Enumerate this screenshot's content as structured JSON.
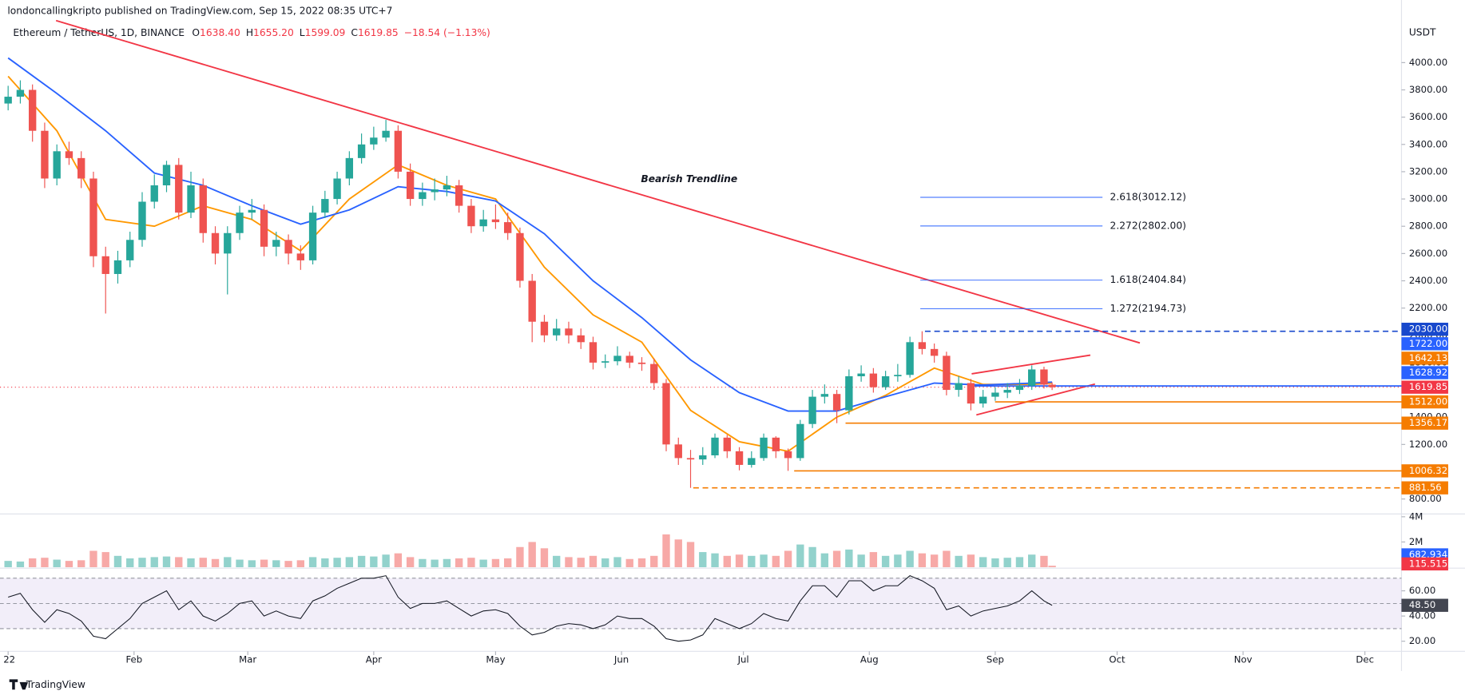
{
  "header": {
    "publisher": "londoncallingkripto published on TradingView.com, Sep 15, 2022 08:35 UTC+7",
    "symbol": "Ethereum / TetherUS, 1D, BINANCE",
    "ohlc": [
      {
        "key": "O",
        "text": "1638.40"
      },
      {
        "key": "H",
        "text": "1655.20"
      },
      {
        "key": "L",
        "text": "1599.09"
      },
      {
        "key": "C",
        "text": "1619.85"
      }
    ],
    "change": "−18.54 (−1.13%)",
    "currency": "USDT",
    "footer": "TradingView"
  },
  "chart_data": {
    "type": "candlestick",
    "annotation": "Bearish Trendline",
    "x": [
      0,
      3,
      6,
      9,
      12,
      15,
      18,
      21,
      24,
      27,
      30,
      33,
      36,
      39,
      42,
      45,
      48,
      51,
      54,
      57,
      60,
      63,
      66,
      69,
      72,
      75,
      78,
      81,
      84,
      87,
      90,
      93,
      96,
      99,
      102,
      105,
      108,
      111,
      114,
      117,
      120,
      123,
      126,
      129,
      132,
      135,
      138,
      141,
      144,
      147,
      150,
      153,
      156,
      159,
      162,
      165,
      168,
      171,
      174,
      177,
      180,
      183,
      186,
      189,
      192,
      195,
      198,
      201,
      204,
      207,
      210,
      213,
      216,
      219,
      222,
      225,
      228,
      231,
      234,
      237,
      240,
      243,
      246,
      249,
      252,
      255,
      257
    ],
    "open": [
      3700,
      3750,
      3800,
      3500,
      3150,
      3350,
      3300,
      3150,
      2580,
      2450,
      2550,
      2700,
      2980,
      3100,
      3250,
      2900,
      3100,
      2750,
      2600,
      2750,
      2900,
      2920,
      2650,
      2700,
      2600,
      2550,
      2900,
      3000,
      3150,
      3300,
      3400,
      3450,
      3500,
      3200,
      3000,
      3050,
      3070,
      3100,
      2950,
      2800,
      2850,
      2830,
      2750,
      2400,
      2100,
      2000,
      2050,
      2000,
      1950,
      1800,
      1810,
      1850,
      1800,
      1790,
      1650,
      1200,
      1100,
      1090,
      1120,
      1250,
      1150,
      1050,
      1100,
      1250,
      1150,
      1100,
      1350,
      1550,
      1570,
      1450,
      1700,
      1720,
      1620,
      1700,
      1710,
      1950,
      1900,
      1850,
      1600,
      1650,
      1500,
      1550,
      1580,
      1600,
      1630,
      1750,
      1638.4
    ],
    "high": [
      3830,
      3870,
      3840,
      3560,
      3400,
      3420,
      3350,
      3200,
      2650,
      2620,
      2760,
      3050,
      3180,
      3280,
      3300,
      3200,
      3150,
      2800,
      2800,
      2950,
      3000,
      2960,
      2760,
      2740,
      2660,
      2950,
      3060,
      3200,
      3350,
      3480,
      3530,
      3580,
      3540,
      3260,
      3120,
      3150,
      3170,
      3140,
      3000,
      2920,
      2960,
      2900,
      2790,
      2450,
      2150,
      2120,
      2100,
      2050,
      1990,
      1860,
      1920,
      1880,
      1840,
      1830,
      1680,
      1250,
      1160,
      1180,
      1280,
      1270,
      1180,
      1150,
      1280,
      1260,
      1170,
      1380,
      1600,
      1640,
      1600,
      1750,
      1780,
      1760,
      1740,
      1790,
      1990,
      2030,
      1940,
      1880,
      1700,
      1680,
      1600,
      1620,
      1650,
      1680,
      1780,
      1770,
      1655.2
    ],
    "low": [
      3650,
      3700,
      3420,
      3080,
      3100,
      3250,
      3080,
      2500,
      2160,
      2380,
      2500,
      2650,
      2930,
      3050,
      2850,
      2860,
      2680,
      2520,
      2300,
      2700,
      2850,
      2580,
      2580,
      2520,
      2480,
      2520,
      2860,
      2960,
      3100,
      3260,
      3360,
      3420,
      3150,
      2950,
      2950,
      2990,
      3020,
      2900,
      2750,
      2760,
      2780,
      2700,
      2350,
      1950,
      1950,
      1960,
      1940,
      1900,
      1750,
      1760,
      1780,
      1760,
      1740,
      1600,
      1150,
      1050,
      881.56,
      1050,
      1100,
      1100,
      1010,
      1030,
      1080,
      1100,
      1006.32,
      1080,
      1320,
      1500,
      1356.17,
      1420,
      1660,
      1580,
      1600,
      1660,
      1690,
      1860,
      1800,
      1560,
      1550,
      1450,
      1470,
      1520,
      1540,
      1570,
      1600,
      1610,
      1599.09
    ],
    "close": [
      3750,
      3800,
      3500,
      3150,
      3350,
      3300,
      3150,
      2580,
      2450,
      2550,
      2700,
      2980,
      3100,
      3250,
      2900,
      3100,
      2750,
      2600,
      2750,
      2900,
      2920,
      2650,
      2700,
      2600,
      2550,
      2900,
      3000,
      3150,
      3300,
      3400,
      3450,
      3500,
      3200,
      3000,
      3050,
      3070,
      3100,
      2950,
      2800,
      2850,
      2830,
      2750,
      2400,
      2100,
      2000,
      2050,
      2000,
      1950,
      1800,
      1810,
      1850,
      1800,
      1790,
      1650,
      1200,
      1100,
      1090,
      1120,
      1250,
      1150,
      1050,
      1100,
      1250,
      1150,
      1100,
      1350,
      1550,
      1570,
      1450,
      1700,
      1720,
      1620,
      1700,
      1710,
      1950,
      1900,
      1850,
      1600,
      1650,
      1500,
      1550,
      1580,
      1600,
      1630,
      1750,
      1638.4,
      1619.85
    ],
    "up_color": "#26a69a",
    "down_color": "#ef5350",
    "moving_averages": [
      {
        "color": "#ff9800",
        "x": [
          0,
          12,
          24,
          36,
          48,
          60,
          72,
          84,
          96,
          108,
          120,
          132,
          144,
          156,
          168,
          180,
          192,
          204,
          216,
          228,
          240,
          252,
          257
        ],
        "values": [
          3900,
          3500,
          2850,
          2800,
          2950,
          2850,
          2620,
          3000,
          3250,
          3100,
          3000,
          2500,
          2150,
          1950,
          1450,
          1220,
          1150,
          1400,
          1560,
          1760,
          1640,
          1640,
          1650
        ]
      },
      {
        "color": "#2962ff",
        "x": [
          0,
          12,
          24,
          36,
          48,
          60,
          72,
          84,
          96,
          108,
          120,
          132,
          144,
          156,
          168,
          180,
          192,
          204,
          216,
          228,
          240,
          252,
          257
        ],
        "values": [
          4034,
          3774,
          3500,
          3190,
          3100,
          2950,
          2815,
          2920,
          3090,
          3055,
          2985,
          2745,
          2400,
          2130,
          1820,
          1580,
          1445,
          1445,
          1550,
          1650,
          1636,
          1650,
          1657
        ]
      }
    ],
    "xlim": [
      -2,
      343
    ],
    "xticks": [
      {
        "value": 0,
        "label": "22"
      },
      {
        "value": 31,
        "label": "Feb"
      },
      {
        "value": 59,
        "label": "Mar"
      },
      {
        "value": 90,
        "label": "Apr"
      },
      {
        "value": 120,
        "label": "May"
      },
      {
        "value": 151,
        "label": "Jun"
      },
      {
        "value": 181,
        "label": "Jul"
      },
      {
        "value": 212,
        "label": "Aug"
      },
      {
        "value": 243,
        "label": "Sep"
      },
      {
        "value": 273,
        "label": "Oct"
      },
      {
        "value": 304,
        "label": "Nov"
      },
      {
        "value": 334,
        "label": "Dec"
      }
    ],
    "ylim": [
      704,
      4356
    ],
    "yticks": [
      {
        "value": 800,
        "label": "800.00"
      },
      {
        "value": 1000,
        "label": "1000.00"
      },
      {
        "value": 1200,
        "label": "1200.00"
      },
      {
        "value": 1400,
        "label": "1400.00"
      },
      {
        "value": 1600,
        "label": "1600.00"
      },
      {
        "value": 1800,
        "label": "1800.00"
      },
      {
        "value": 2000,
        "label": "2000.00"
      },
      {
        "value": 2200,
        "label": "2200.00"
      },
      {
        "value": 2400,
        "label": "2400.00"
      },
      {
        "value": 2600,
        "label": "2600.00"
      },
      {
        "value": 2800,
        "label": "2800.00"
      },
      {
        "value": 3000,
        "label": "3000.00"
      },
      {
        "value": 3200,
        "label": "3200.00"
      },
      {
        "value": 3400,
        "label": "3400.00"
      },
      {
        "value": 3600,
        "label": "3600.00"
      },
      {
        "value": 3800,
        "label": "3800.00"
      },
      {
        "value": 4000,
        "label": "4000.00"
      }
    ],
    "fib_levels": [
      {
        "value": 3012.12,
        "label": "2.618(3012.12)"
      },
      {
        "value": 2802,
        "label": "2.272(2802.00)"
      },
      {
        "value": 2404.84,
        "label": "1.618(2404.84)"
      },
      {
        "value": 2194.73,
        "label": "1.272(2194.73)"
      }
    ],
    "levels": [
      {
        "value": 2030,
        "label": "2030.00",
        "color": "#1848cc",
        "line": "dashed"
      },
      {
        "value": 1722,
        "label": "1722.00",
        "color": "#2962ff",
        "line": "none"
      },
      {
        "value": 1642.13,
        "label": "1642.13",
        "color": "#f57c00",
        "line": "none"
      },
      {
        "value": 1628.92,
        "label": "1628.92",
        "color": "#2962ff",
        "line": "solid"
      },
      {
        "value": 1619.85,
        "label": "1619.85",
        "color": "#f23645",
        "line": "dotted"
      },
      {
        "value": 1512,
        "label": "1512.00",
        "color": "#f57c00",
        "line": "solid"
      },
      {
        "value": 1356.17,
        "label": "1356.17",
        "color": "#f57c00",
        "line": "solid"
      },
      {
        "value": 1006.32,
        "label": "1006.32",
        "color": "#f57c00",
        "line": "solid"
      },
      {
        "value": 881.56,
        "label": "881.56",
        "color": "#f57c00",
        "line": "dashed"
      }
    ],
    "volume": {
      "values": [
        500000,
        450000,
        700000,
        750000,
        600000,
        500000,
        550000,
        1300000,
        1200000,
        900000,
        700000,
        750000,
        800000,
        850000,
        800000,
        700000,
        750000,
        650000,
        800000,
        600000,
        550000,
        600000,
        550000,
        500000,
        550000,
        800000,
        700000,
        750000,
        800000,
        900000,
        850000,
        1000000,
        1100000,
        800000,
        650000,
        600000,
        650000,
        700000,
        750000,
        600000,
        650000,
        700000,
        1600000,
        2000000,
        1500000,
        900000,
        800000,
        750000,
        900000,
        700000,
        800000,
        650000,
        700000,
        900000,
        2600000,
        2200000,
        2000000,
        1200000,
        1100000,
        900000,
        1000000,
        900000,
        1000000,
        900000,
        1300000,
        1800000,
        1600000,
        1100000,
        1300000,
        1400000,
        1000000,
        1200000,
        900000,
        1000000,
        1300000,
        1100000,
        1000000,
        1300000,
        900000,
        1000000,
        800000,
        700000,
        750000,
        800000,
        1000000,
        900000,
        115515
      ],
      "ylim": [
        0,
        4000000
      ],
      "yticks": [
        {
          "value": 4000000,
          "label": "4M"
        },
        {
          "value": 2000000,
          "label": "2M"
        }
      ],
      "ma_label": {
        "value": 682934,
        "label": "682.934K",
        "color": "#2962ff"
      },
      "last_label": {
        "value": 115515,
        "label": "115.515K",
        "color": "#f23645"
      }
    },
    "rsi": {
      "values": [
        55,
        58,
        45,
        35,
        45,
        42,
        36,
        24,
        22,
        30,
        38,
        50,
        55,
        60,
        45,
        52,
        40,
        36,
        42,
        50,
        52,
        40,
        44,
        40,
        38,
        52,
        56,
        62,
        66,
        70,
        70,
        72,
        55,
        46,
        50,
        50,
        52,
        46,
        40,
        44,
        45,
        42,
        32,
        25,
        27,
        32,
        34,
        33,
        30,
        33,
        40,
        38,
        38,
        32,
        22,
        20,
        21,
        25,
        38,
        34,
        30,
        34,
        42,
        38,
        36,
        52,
        64,
        64,
        55,
        68,
        68,
        60,
        64,
        64,
        72,
        68,
        62,
        45,
        48,
        40,
        44,
        46,
        48,
        52,
        60,
        52,
        48.5
      ],
      "ylim": [
        12,
        78
      ],
      "yticks": [
        {
          "value": 60,
          "label": "60.00"
        },
        {
          "value": 40,
          "label": "40.00"
        },
        {
          "value": 20,
          "label": "20.00"
        }
      ],
      "band_levels": [
        70,
        50,
        30
      ],
      "last_label": {
        "value": 48.5,
        "label": "48.50"
      }
    }
  }
}
